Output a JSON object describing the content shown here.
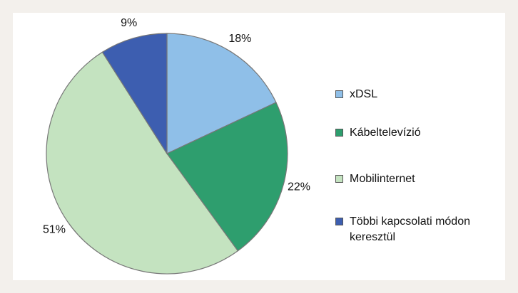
{
  "chart_data": {
    "type": "pie",
    "categories": [
      "xDSL",
      "Kábeltelevízió",
      "Mobilinternet",
      "Többi kapcsolati módon keresztül"
    ],
    "values": [
      18,
      22,
      51,
      9
    ],
    "value_labels": [
      "18%",
      "22%",
      "51%",
      "9%"
    ],
    "colors": [
      "#8fbfe8",
      "#2e9e6e",
      "#c4e3c0",
      "#3d5eb0"
    ],
    "legend": "right"
  }
}
